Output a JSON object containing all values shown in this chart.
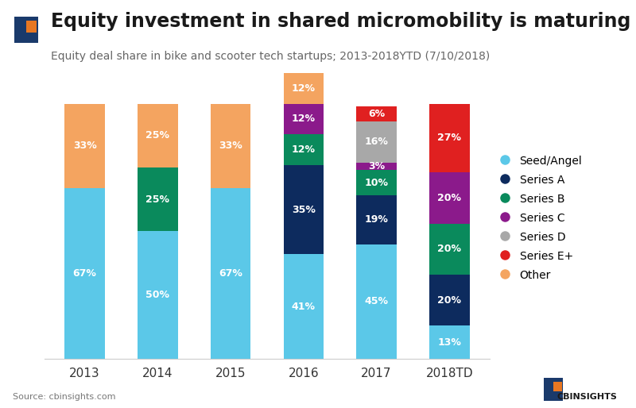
{
  "title": "Equity investment in shared micromobility is maturing",
  "subtitle": "Equity deal share in bike and scooter tech startups; 2013-2018YTD (7/10/2018)",
  "source": "Source: cbinsights.com",
  "categories": [
    "2013",
    "2014",
    "2015",
    "2016",
    "2017",
    "2018TD"
  ],
  "series_order": [
    "Seed/Angel",
    "Series A",
    "Series B",
    "Series C",
    "Series D",
    "Series E+",
    "Other"
  ],
  "series": {
    "Seed/Angel": [
      67,
      50,
      67,
      41,
      45,
      13
    ],
    "Series A": [
      0,
      0,
      0,
      35,
      19,
      20
    ],
    "Series B": [
      0,
      25,
      0,
      12,
      10,
      20
    ],
    "Series C": [
      0,
      0,
      0,
      12,
      3,
      20
    ],
    "Series D": [
      0,
      0,
      0,
      0,
      16,
      0
    ],
    "Series E+": [
      0,
      0,
      0,
      0,
      6,
      27
    ],
    "Other": [
      33,
      25,
      33,
      12,
      0,
      0
    ]
  },
  "colors": {
    "Seed/Angel": "#5BC8E8",
    "Series A": "#0D2B5E",
    "Series B": "#0A8A5C",
    "Series C": "#8B1A8B",
    "Series D": "#A8A8A8",
    "Series E+": "#E02020",
    "Other": "#F4A460"
  },
  "bar_width": 0.55,
  "figsize": [
    8.0,
    5.14
  ],
  "dpi": 100,
  "bg_color": "#FFFFFF",
  "text_color": "#333333",
  "label_color": "#FFFFFF",
  "title_fontsize": 17,
  "subtitle_fontsize": 10,
  "tick_fontsize": 11,
  "legend_fontsize": 10,
  "source_fontsize": 8
}
